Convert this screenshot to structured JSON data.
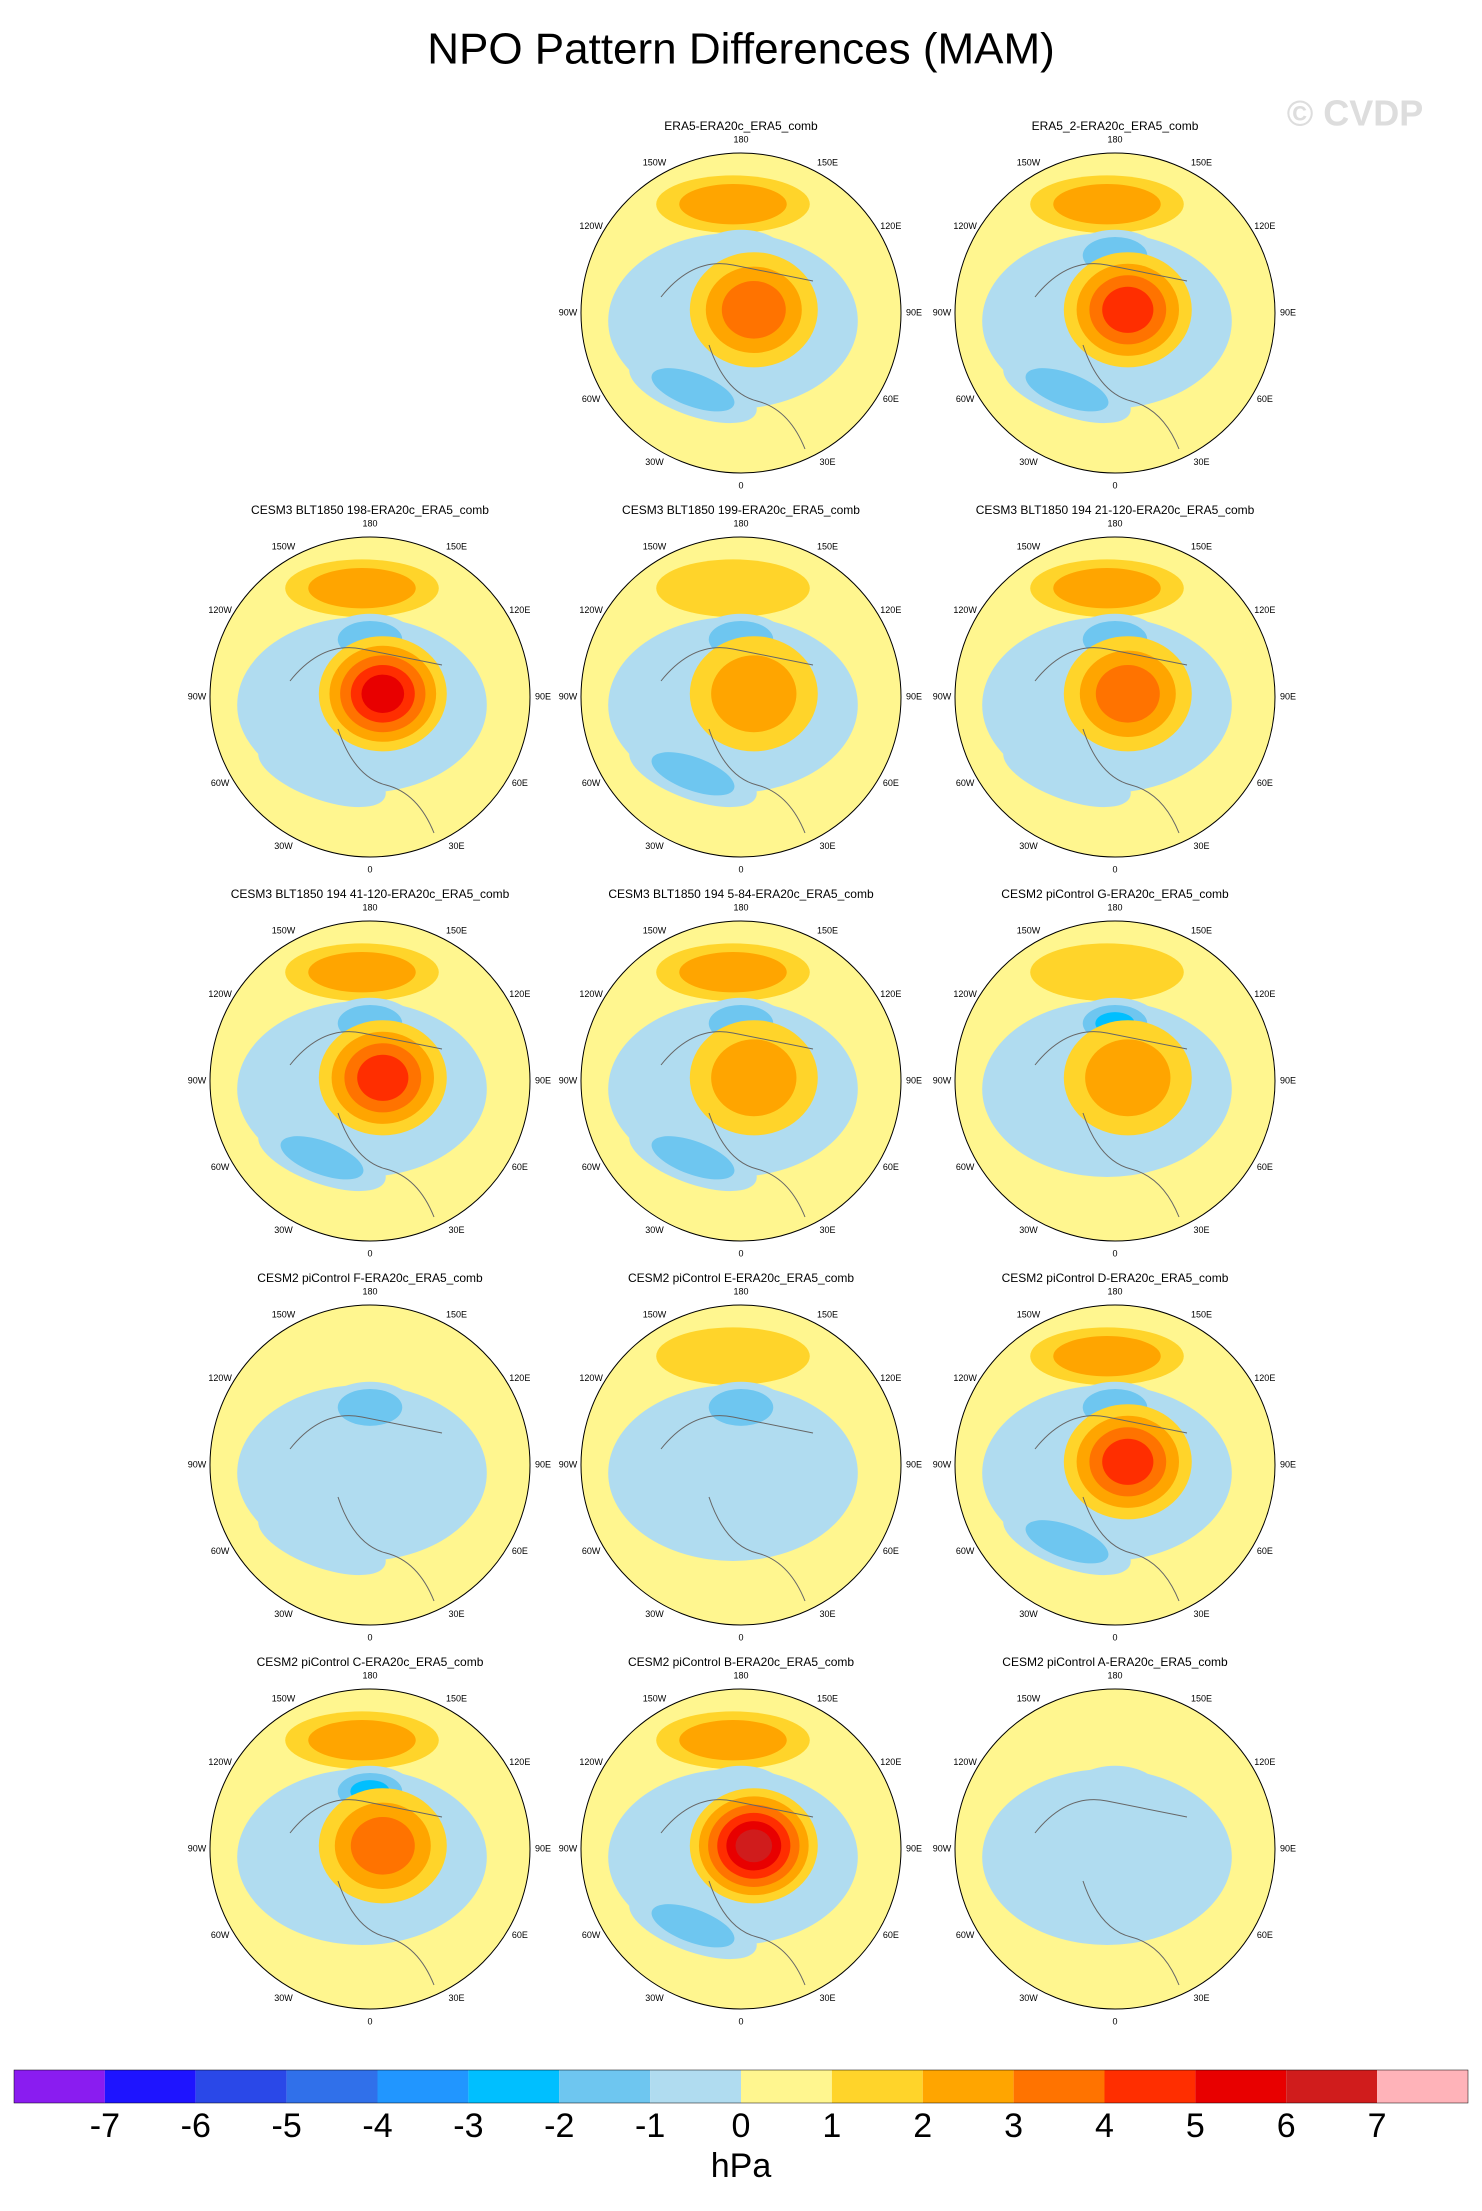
{
  "chart_data": {
    "type": "polar-map-panels",
    "title": "NPO Pattern Differences (MAM)",
    "watermark": "© CVDP",
    "panels": [
      {
        "title": "ERA5-ERA20c_ERA5_comb"
      },
      {
        "title": "ERA5_2-ERA20c_ERA5_comb"
      },
      {
        "title": "CESM3 BLT1850 198-ERA20c_ERA5_comb"
      },
      {
        "title": "CESM3 BLT1850 199-ERA20c_ERA5_comb"
      },
      {
        "title": "CESM3 BLT1850 194 21-120-ERA20c_ERA5_comb"
      },
      {
        "title": "CESM3 BLT1850 194 41-120-ERA20c_ERA5_comb"
      },
      {
        "title": "CESM3 BLT1850 194 5-84-ERA20c_ERA5_comb"
      },
      {
        "title": "CESM2 piControl G-ERA20c_ERA5_comb"
      },
      {
        "title": "CESM2 piControl F-ERA20c_ERA5_comb"
      },
      {
        "title": "CESM2 piControl E-ERA20c_ERA5_comb"
      },
      {
        "title": "CESM2 piControl D-ERA20c_ERA5_comb"
      },
      {
        "title": "CESM2 piControl C-ERA20c_ERA5_comb"
      },
      {
        "title": "CESM2 piControl B-ERA20c_ERA5_comb"
      },
      {
        "title": "CESM2 piControl A-ERA20c_ERA5_comb"
      }
    ],
    "lon_ticks": [
      {
        "value": 180,
        "label": "180"
      },
      {
        "value": -150,
        "label": "150W"
      },
      {
        "value": 150,
        "label": "150E"
      },
      {
        "value": -120,
        "label": "120W"
      },
      {
        "value": 120,
        "label": "120E"
      },
      {
        "value": -90,
        "label": "90W"
      },
      {
        "value": 90,
        "label": "90E"
      },
      {
        "value": -60,
        "label": "60W"
      },
      {
        "value": 60,
        "label": "60E"
      },
      {
        "value": -30,
        "label": "30W"
      },
      {
        "value": 30,
        "label": "30E"
      },
      {
        "value": 0,
        "label": "0"
      }
    ],
    "colorbar": {
      "ticks": [
        -7,
        -6,
        -5,
        -4,
        -3,
        -2,
        -1,
        0,
        1,
        2,
        3,
        4,
        5,
        6,
        7
      ],
      "colors": [
        "#8a1cf0",
        "#1e14ff",
        "#2a48e8",
        "#3070ea",
        "#2196ff",
        "#00bfff",
        "#6ec6f0",
        "#b0dcf0",
        "#fff68f",
        "#ffd42a",
        "#ffa500",
        "#ff7300",
        "#ff2e00",
        "#e80000",
        "#d01c1c",
        "#ffb3b9"
      ],
      "label": "hPa"
    }
  }
}
